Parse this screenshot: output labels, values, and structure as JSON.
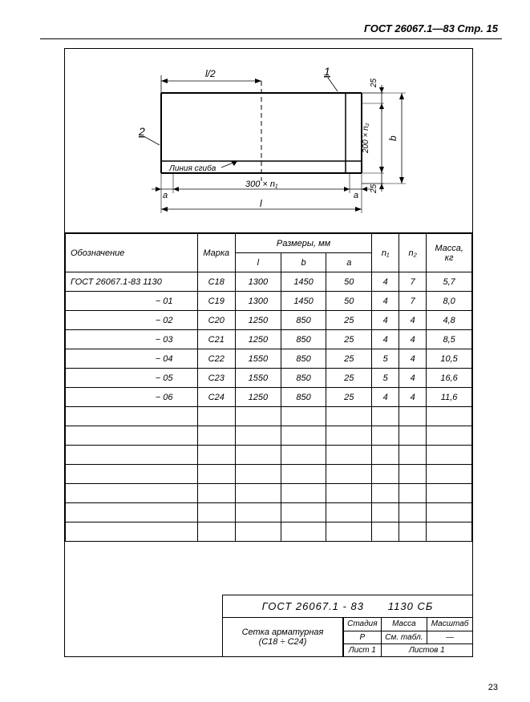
{
  "header": "ГОСТ 26067.1—83 Стр. 15",
  "diagram": {
    "l2": "l/2",
    "one": "1",
    "two": "2",
    "twentyfive_top": "25",
    "twentyfive_bot": "25",
    "dim200": "200 × n₂",
    "b": "b",
    "bend_line": "Линия сгиба",
    "a_left": "a",
    "dim300": "300 × n₁",
    "a_right": "a",
    "L": "l"
  },
  "table": {
    "headers": {
      "designation": "Обозначение",
      "marka": "Марка",
      "dimensions": "Размеры, мм",
      "L": "l",
      "b": "b",
      "a": "a",
      "n1": "n₁",
      "n2": "n₂",
      "mass": "Масса, кг"
    },
    "rows": [
      {
        "des": "ГОСТ 26067.1-83  1130",
        "marka": "C18",
        "L": "1300",
        "b": "1450",
        "a": "50",
        "n1": "4",
        "n2": "7",
        "mass": "5,7",
        "align": "left"
      },
      {
        "des": "− 01",
        "marka": "C19",
        "L": "1300",
        "b": "1450",
        "a": "50",
        "n1": "4",
        "n2": "7",
        "mass": "8,0"
      },
      {
        "des": "− 02",
        "marka": "C20",
        "L": "1250",
        "b": "850",
        "a": "25",
        "n1": "4",
        "n2": "4",
        "mass": "4,8"
      },
      {
        "des": "− 03",
        "marka": "C21",
        "L": "1250",
        "b": "850",
        "a": "25",
        "n1": "4",
        "n2": "4",
        "mass": "8,5"
      },
      {
        "des": "− 04",
        "marka": "C22",
        "L": "1550",
        "b": "850",
        "a": "25",
        "n1": "5",
        "n2": "4",
        "mass": "10,5"
      },
      {
        "des": "− 05",
        "marka": "C23",
        "L": "1550",
        "b": "850",
        "a": "25",
        "n1": "5",
        "n2": "4",
        "mass": "16,6"
      },
      {
        "des": "− 06",
        "marka": "C24",
        "L": "1250",
        "b": "850",
        "a": "25",
        "n1": "4",
        "n2": "4",
        "mass": "11,6"
      }
    ]
  },
  "title_block": {
    "line1_a": "ГОСТ 26067.1 - 83",
    "line1_b": "1130 СБ",
    "name1": "Сетка арматурная",
    "name2": "(С18 ÷ С24)",
    "stadiya": "Стадия",
    "massa": "Масса",
    "masshtab": "Масштаб",
    "p": "Р",
    "sm_tabl": "См. табл.",
    "dash": "—",
    "list1": "Лист 1",
    "listov1": "Листов 1"
  },
  "page_num": "23"
}
